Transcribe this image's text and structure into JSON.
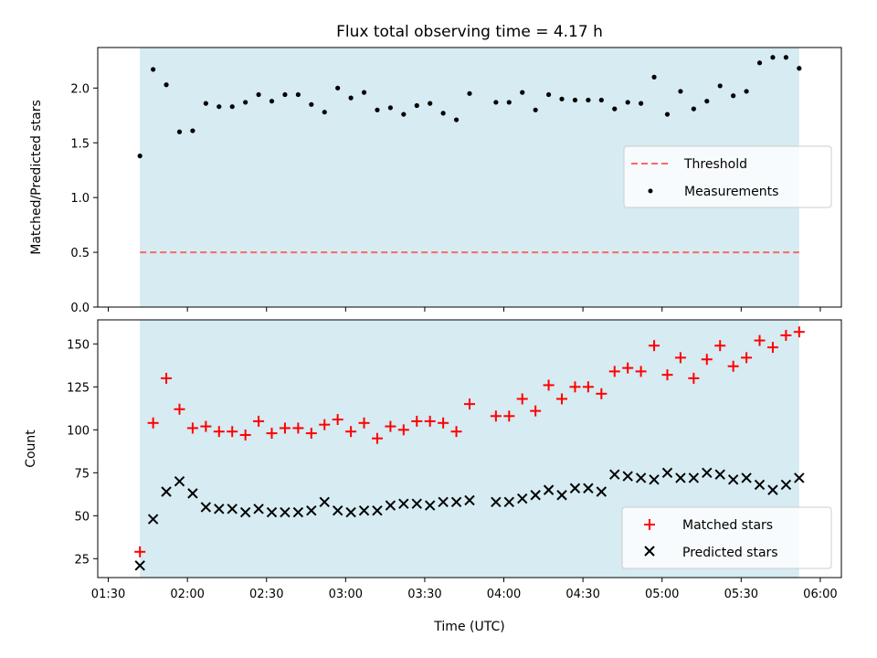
{
  "title": "Flux total observing time = 4.17 h",
  "colors": {
    "band": "#add8e6",
    "threshold": "#ff6666",
    "measurement": "#000000",
    "matched": "#ff0000",
    "predicted": "#000000"
  },
  "chart_data": [
    {
      "type": "scatter",
      "panel": "top",
      "ylabel": "Matched/Predicted stars",
      "xlim": [
        "01:26",
        "06:08"
      ],
      "ylim": [
        0,
        2.37
      ],
      "yticks": [
        "0.0",
        "0.5",
        "1.0",
        "1.5",
        "2.0"
      ],
      "shaded_interval": [
        "01:42",
        "05:52"
      ],
      "legend_position": "center-right",
      "threshold": {
        "name": "Threshold",
        "value": 0.5,
        "style": "dashed"
      },
      "series": [
        {
          "name": "Measurements",
          "marker": "dot",
          "x": [
            "01:42",
            "01:47",
            "01:52",
            "01:57",
            "02:02",
            "02:07",
            "02:12",
            "02:17",
            "02:22",
            "02:27",
            "02:32",
            "02:37",
            "02:42",
            "02:47",
            "02:52",
            "02:57",
            "03:02",
            "03:07",
            "03:12",
            "03:17",
            "03:22",
            "03:27",
            "03:32",
            "03:37",
            "03:42",
            "03:47",
            "03:57",
            "04:02",
            "04:07",
            "04:12",
            "04:17",
            "04:22",
            "04:27",
            "04:32",
            "04:37",
            "04:42",
            "04:47",
            "04:52",
            "04:57",
            "05:02",
            "05:07",
            "05:12",
            "05:17",
            "05:22",
            "05:27",
            "05:32",
            "05:37",
            "05:42",
            "05:47",
            "05:52"
          ],
          "y": [
            1.38,
            2.17,
            2.03,
            1.6,
            1.61,
            1.86,
            1.83,
            1.83,
            1.87,
            1.94,
            1.88,
            1.94,
            1.94,
            1.85,
            1.78,
            2.0,
            1.91,
            1.96,
            1.8,
            1.82,
            1.76,
            1.84,
            1.86,
            1.77,
            1.71,
            1.95,
            1.87,
            1.87,
            1.96,
            1.8,
            1.94,
            1.9,
            1.89,
            1.89,
            1.89,
            1.81,
            1.87,
            1.86,
            2.1,
            1.76,
            1.97,
            1.81,
            1.88,
            2.02,
            1.93,
            1.97,
            2.23,
            2.28,
            2.28,
            2.18
          ]
        }
      ]
    },
    {
      "type": "scatter",
      "panel": "bottom",
      "xlabel": "Time (UTC)",
      "ylabel": "Count",
      "xlim": [
        "01:26",
        "06:08"
      ],
      "ylim": [
        14,
        164
      ],
      "yticks": [
        "25",
        "50",
        "75",
        "100",
        "125",
        "150"
      ],
      "xticks": [
        "01:30",
        "02:00",
        "02:30",
        "03:00",
        "03:30",
        "04:00",
        "04:30",
        "05:00",
        "05:30",
        "06:00"
      ],
      "shaded_interval": [
        "01:42",
        "05:52"
      ],
      "legend_position": "lower-right",
      "series": [
        {
          "name": "Matched stars",
          "marker": "plus",
          "x": [
            "01:42",
            "01:47",
            "01:52",
            "01:57",
            "02:02",
            "02:07",
            "02:12",
            "02:17",
            "02:22",
            "02:27",
            "02:32",
            "02:37",
            "02:42",
            "02:47",
            "02:52",
            "02:57",
            "03:02",
            "03:07",
            "03:12",
            "03:17",
            "03:22",
            "03:27",
            "03:32",
            "03:37",
            "03:42",
            "03:47",
            "03:57",
            "04:02",
            "04:07",
            "04:12",
            "04:17",
            "04:22",
            "04:27",
            "04:32",
            "04:37",
            "04:42",
            "04:47",
            "04:52",
            "04:57",
            "05:02",
            "05:07",
            "05:12",
            "05:17",
            "05:22",
            "05:27",
            "05:32",
            "05:37",
            "05:42",
            "05:47",
            "05:52"
          ],
          "y": [
            29,
            104,
            130,
            112,
            101,
            102,
            99,
            99,
            97,
            105,
            98,
            101,
            101,
            98,
            103,
            106,
            99,
            104,
            95,
            102,
            100,
            105,
            105,
            104,
            99,
            115,
            108,
            108,
            118,
            111,
            126,
            118,
            125,
            125,
            121,
            134,
            136,
            134,
            149,
            132,
            142,
            130,
            141,
            149,
            137,
            142,
            152,
            148,
            155,
            157
          ]
        },
        {
          "name": "Predicted stars",
          "marker": "x",
          "x": [
            "01:42",
            "01:47",
            "01:52",
            "01:57",
            "02:02",
            "02:07",
            "02:12",
            "02:17",
            "02:22",
            "02:27",
            "02:32",
            "02:37",
            "02:42",
            "02:47",
            "02:52",
            "02:57",
            "03:02",
            "03:07",
            "03:12",
            "03:17",
            "03:22",
            "03:27",
            "03:32",
            "03:37",
            "03:42",
            "03:47",
            "03:57",
            "04:02",
            "04:07",
            "04:12",
            "04:17",
            "04:22",
            "04:27",
            "04:32",
            "04:37",
            "04:42",
            "04:47",
            "04:52",
            "04:57",
            "05:02",
            "05:07",
            "05:12",
            "05:17",
            "05:22",
            "05:27",
            "05:32",
            "05:37",
            "05:42",
            "05:47",
            "05:52"
          ],
          "y": [
            21,
            48,
            64,
            70,
            63,
            55,
            54,
            54,
            52,
            54,
            52,
            52,
            52,
            53,
            58,
            53,
            52,
            53,
            53,
            56,
            57,
            57,
            56,
            58,
            58,
            59,
            58,
            58,
            60,
            62,
            65,
            62,
            66,
            66,
            64,
            74,
            73,
            72,
            71,
            75,
            72,
            72,
            75,
            74,
            71,
            72,
            68,
            65,
            68,
            72
          ]
        }
      ]
    }
  ]
}
